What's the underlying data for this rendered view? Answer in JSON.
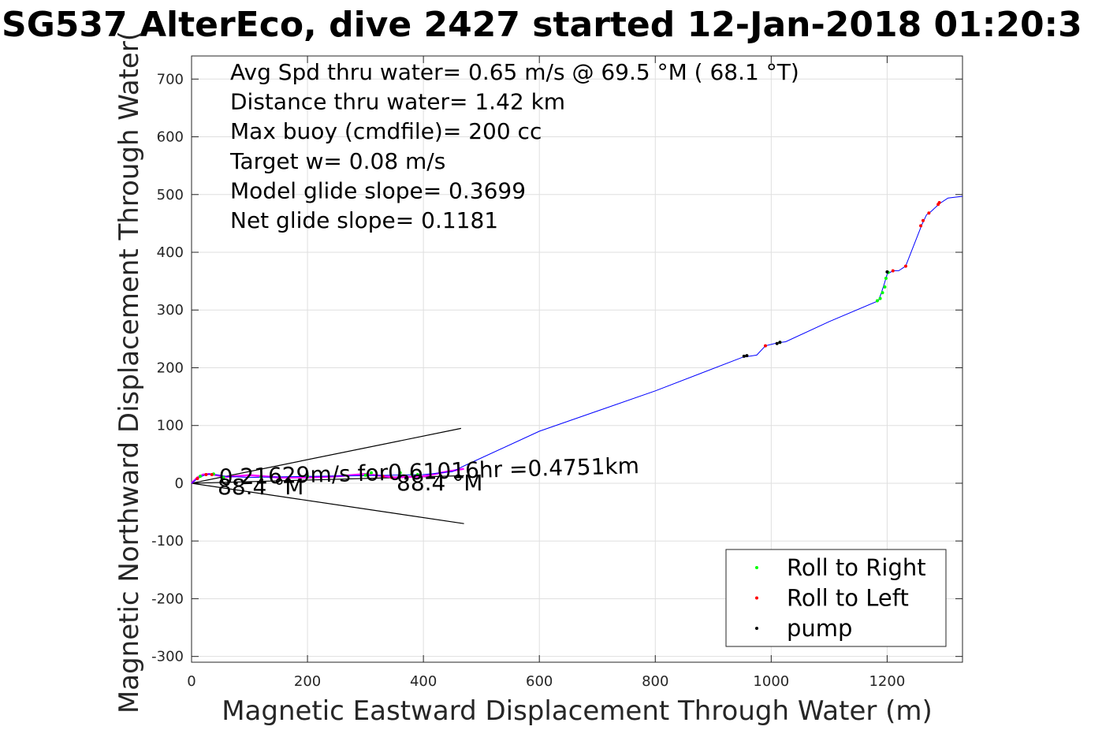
{
  "chart_data": {
    "type": "line",
    "title": "SG537 AlterEco, dive 2427 started 12-Jan-2018 01:20:3",
    "xlabel": "Magnetic Eastward Displacement Through Water (m)",
    "ylabel": "Magnetic Northward Displacement Through Water(",
    "xlim": [
      0,
      1330
    ],
    "ylim": [
      -310,
      740
    ],
    "xticks": [
      0,
      200,
      400,
      600,
      800,
      1000,
      1200
    ],
    "yticks": [
      -300,
      -200,
      -100,
      0,
      100,
      200,
      300,
      400,
      500,
      600,
      700
    ],
    "grid": true,
    "legend_position": "bottom-right",
    "colors": {
      "track": "#0000ff",
      "roll_right": "#00ff00",
      "roll_left": "#ff0000",
      "pump": "#000000",
      "current_track": "#ff00ff",
      "current_lines": "#000000"
    },
    "annotations": [
      "Avg Spd thru water=  0.65 m/s @  69.5 °M ( 68.1 °T)",
      "Distance thru water=  1.42 km",
      "Max buoy (cmdfile)= 200 cc",
      "Target w= 0.08 m/s",
      "Model glide slope= 0.3699",
      "Net glide slope= 0.1181"
    ],
    "current_label": "0.21629m/s for0.61016hr =0.4751km",
    "heading_labels": [
      "88.4 °M",
      "88.4 °M"
    ],
    "legend": [
      {
        "name": "Roll to Right",
        "color": "#00ff00"
      },
      {
        "name": "Roll to Left",
        "color": "#ff0000"
      },
      {
        "name": "pump",
        "color": "#000000"
      }
    ],
    "track": {
      "x": [
        0,
        10,
        20,
        30,
        40,
        60,
        100,
        200,
        300,
        400,
        450,
        470,
        600,
        800,
        950,
        975,
        990,
        1010,
        1025,
        1100,
        1185,
        1190,
        1195,
        1200,
        1210,
        1220,
        1232,
        1260,
        1268,
        1275,
        1290,
        1305,
        1330
      ],
      "y": [
        0,
        8,
        13,
        16,
        15,
        12,
        10,
        12,
        13,
        15,
        20,
        30,
        90,
        160,
        218,
        222,
        238,
        243,
        245,
        280,
        316,
        330,
        345,
        362,
        368,
        368,
        376,
        448,
        465,
        470,
        484,
        494,
        497
      ]
    },
    "current_track": {
      "x": [
        0,
        10,
        20,
        30,
        60,
        100,
        150,
        200,
        250,
        300,
        350,
        400,
        440,
        470
      ],
      "y": [
        0,
        10,
        15,
        16,
        11,
        14,
        10,
        10,
        12,
        16,
        10,
        12,
        20,
        25
      ]
    },
    "current_cone": {
      "upper": {
        "x": [
          0,
          465
        ],
        "y": [
          0,
          95
        ]
      },
      "lower": {
        "x": [
          0,
          470
        ],
        "y": [
          0,
          -70
        ]
      },
      "middle": {
        "x": [
          0,
          470
        ],
        "y": [
          0,
          13
        ]
      }
    },
    "roll_right": {
      "x": [
        15,
        38,
        55,
        120,
        200,
        300,
        310,
        360,
        380,
        390,
        1183,
        1188,
        1192,
        1196,
        1198,
        1202,
        1015
      ],
      "y": [
        12,
        16,
        10,
        11,
        12,
        14,
        18,
        18,
        16,
        15,
        316,
        320,
        330,
        340,
        355,
        365,
        244
      ]
    },
    "roll_left": {
      "x": [
        10,
        25,
        35,
        330,
        345,
        990,
        1210,
        1232,
        1258,
        1262,
        1272,
        1288,
        1290
      ],
      "y": [
        8,
        15,
        15,
        12,
        10,
        238,
        368,
        376,
        446,
        455,
        468,
        483,
        486
      ]
    },
    "pump": {
      "x": [
        953,
        958,
        1010,
        1015,
        1200
      ],
      "y": [
        220,
        221,
        242,
        244,
        366
      ]
    }
  }
}
